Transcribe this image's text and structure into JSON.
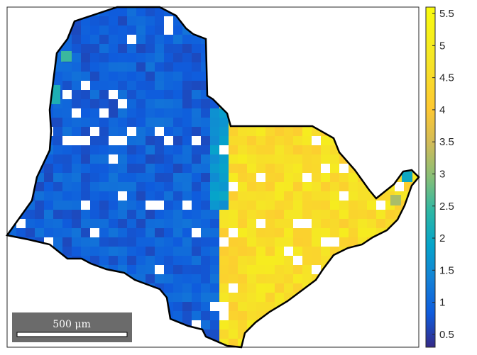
{
  "chart_data": {
    "type": "heatmap",
    "title": "",
    "xlabel": "",
    "ylabel": "",
    "colorbar": {
      "min": 0.3,
      "max": 5.6,
      "ticks": [
        "0.5",
        "1",
        "1.5",
        "2",
        "2.5",
        "3",
        "3.5",
        "4",
        "4.5",
        "5",
        "5.5"
      ],
      "colormap": "parula"
    },
    "scale_bar": {
      "label": "500 μm",
      "length_um": 500
    },
    "map": {
      "regions": [
        {
          "name": "left-grain",
          "mean_value": 0.9
        },
        {
          "name": "right-grain",
          "mean_value": 4.6
        }
      ],
      "notable_cells": [
        {
          "value": 2.5,
          "label": ""
        },
        {
          "value": 2.2,
          "label": ""
        },
        {
          "value": 3.2,
          "label": ""
        },
        {
          "value": 2.0,
          "label": ""
        }
      ]
    }
  }
}
